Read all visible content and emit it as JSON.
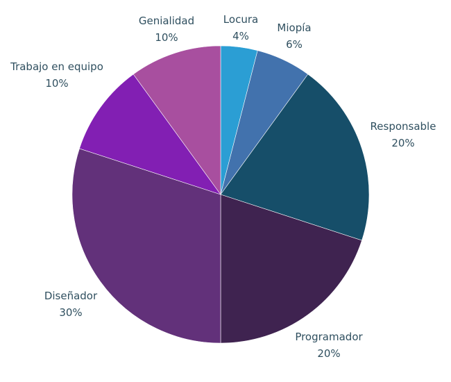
{
  "chart_data": {
    "type": "pie",
    "title": "",
    "start_angle_deg": 0,
    "direction": "clockwise",
    "slices": [
      {
        "label": "Locura",
        "value": 4,
        "value_label": "4%",
        "color": "#2b9ed4"
      },
      {
        "label": "Miopía",
        "value": 6,
        "value_label": "6%",
        "color": "#4272ad"
      },
      {
        "label": "Responsable",
        "value": 20,
        "value_label": "20%",
        "color": "#164e69"
      },
      {
        "label": "Programador",
        "value": 20,
        "value_label": "20%",
        "color": "#3f2350"
      },
      {
        "label": "Diseñador",
        "value": 30,
        "value_label": "30%",
        "color": "#62317a"
      },
      {
        "label": "Trabajo en equipo",
        "value": 10,
        "value_label": "10%",
        "color": "#821fb3"
      },
      {
        "label": "Genialidad",
        "value": 10,
        "value_label": "10%",
        "color": "#a84f9f"
      }
    ],
    "label_color": "#2f4f5f"
  }
}
